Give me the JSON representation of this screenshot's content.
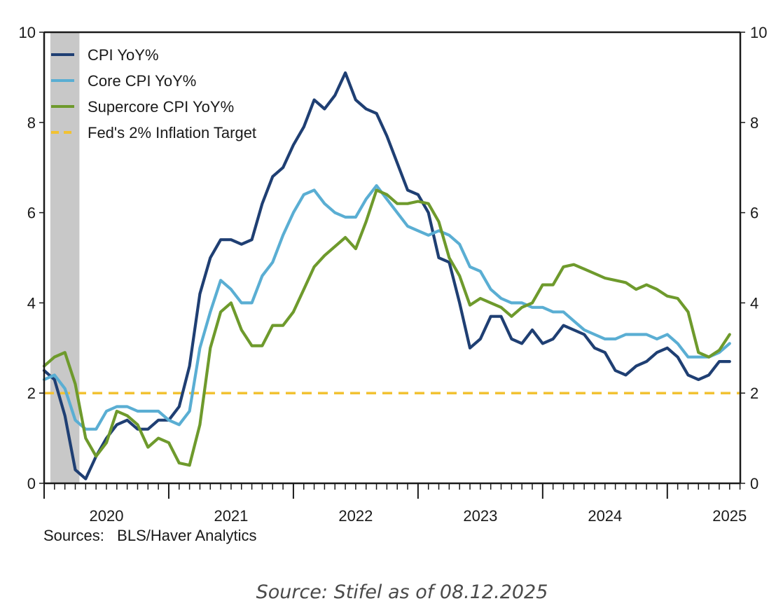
{
  "chart_data": {
    "type": "line",
    "title": "",
    "xlabel": "",
    "ylabel": "",
    "ylim": [
      0,
      10
    ],
    "y_ticks": [
      0,
      2,
      4,
      6,
      8,
      10
    ],
    "y_tick_labels": [
      "0",
      "2",
      "4",
      "6",
      "8",
      "10"
    ],
    "right_axis_ticks": [
      0,
      2,
      4,
      6,
      8,
      10
    ],
    "x_start": "2020-01",
    "x_end": "2025-07",
    "x_range_months": [
      0,
      67
    ],
    "x_tick_labels": [
      "2020",
      "2021",
      "2022",
      "2023",
      "2024",
      "2025"
    ],
    "frequency": "monthly",
    "grid": false,
    "legend_position": "top-left",
    "recession_shading": {
      "start": "2020-02",
      "end": "2020-04",
      "color": "#c8c8c8"
    },
    "series": [
      {
        "name": "CPI YoY%",
        "color": "#1f3f73",
        "style": "solid",
        "values": [
          2.5,
          2.3,
          1.5,
          0.3,
          0.1,
          0.6,
          1.0,
          1.3,
          1.4,
          1.2,
          1.2,
          1.4,
          1.4,
          1.7,
          2.6,
          4.2,
          5.0,
          5.4,
          5.4,
          5.3,
          5.4,
          6.2,
          6.8,
          7.0,
          7.5,
          7.9,
          8.5,
          8.3,
          8.6,
          9.1,
          8.5,
          8.3,
          8.2,
          7.7,
          7.1,
          6.5,
          6.4,
          6.0,
          5.0,
          4.9,
          4.0,
          3.0,
          3.2,
          3.7,
          3.7,
          3.2,
          3.1,
          3.4,
          3.1,
          3.2,
          3.5,
          3.4,
          3.3,
          3.0,
          2.9,
          2.5,
          2.4,
          2.6,
          2.7,
          2.9,
          3.0,
          2.8,
          2.4,
          2.3,
          2.4,
          2.7,
          2.7
        ]
      },
      {
        "name": "Core CPI YoY%",
        "color": "#5aaed3",
        "style": "solid",
        "values": [
          2.3,
          2.4,
          2.1,
          1.4,
          1.2,
          1.2,
          1.6,
          1.7,
          1.7,
          1.6,
          1.6,
          1.6,
          1.4,
          1.3,
          1.6,
          3.0,
          3.8,
          4.5,
          4.3,
          4.0,
          4.0,
          4.6,
          4.9,
          5.5,
          6.0,
          6.4,
          6.5,
          6.2,
          6.0,
          5.9,
          5.9,
          6.3,
          6.6,
          6.3,
          6.0,
          5.7,
          5.6,
          5.5,
          5.6,
          5.5,
          5.3,
          4.8,
          4.7,
          4.3,
          4.1,
          4.0,
          4.0,
          3.9,
          3.9,
          3.8,
          3.8,
          3.6,
          3.4,
          3.3,
          3.2,
          3.2,
          3.3,
          3.3,
          3.3,
          3.2,
          3.3,
          3.1,
          2.8,
          2.8,
          2.8,
          2.9,
          3.1
        ]
      },
      {
        "name": "Supercore CPI YoY%",
        "color": "#6e9a2c",
        "style": "solid",
        "values": [
          2.6,
          2.8,
          2.9,
          2.2,
          1.0,
          0.6,
          0.9,
          1.6,
          1.5,
          1.3,
          0.8,
          1.0,
          0.9,
          0.45,
          0.4,
          1.3,
          3.0,
          3.8,
          4.0,
          3.4,
          3.05,
          3.05,
          3.5,
          3.5,
          3.8,
          4.3,
          4.8,
          5.05,
          5.25,
          5.45,
          5.2,
          5.8,
          6.5,
          6.4,
          6.2,
          6.2,
          6.25,
          6.2,
          5.8,
          5.0,
          4.6,
          3.95,
          4.1,
          4.0,
          3.9,
          3.7,
          3.9,
          4.0,
          4.4,
          4.4,
          4.8,
          4.85,
          4.75,
          4.65,
          4.55,
          4.5,
          4.45,
          4.3,
          4.4,
          4.3,
          4.15,
          4.1,
          3.8,
          2.9,
          2.8,
          2.95,
          3.3
        ]
      },
      {
        "name": "Fed's 2% Inflation Target",
        "color": "#f2c232",
        "style": "dashed",
        "constant": 2
      }
    ],
    "sources_label": "Sources:",
    "sources_value": "BLS/Haver Analytics"
  },
  "caption": "Source: Stifel as of 08.12.2025"
}
